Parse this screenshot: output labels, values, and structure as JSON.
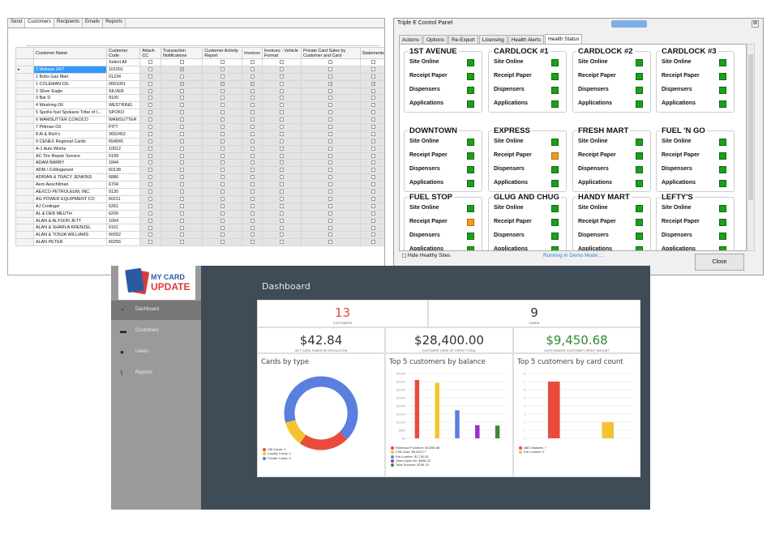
{
  "grid_window": {
    "tabs": [
      "Send",
      "Customers",
      "Recipients",
      "Emails",
      "Reports"
    ],
    "active_tab": "Customers",
    "columns": [
      "Customer Name",
      "Customer Code",
      "Attach CC",
      "Transaction Notifications",
      "Customer Activity Report",
      "Invoices",
      "Invoices - Vehicle Format",
      "Private Card Sales by Customer and Card",
      "Statements"
    ],
    "select_all_label": "Select All",
    "rows": [
      {
        "name": "0 Maltese 24/7",
        "code": "101001",
        "checks": [
          false,
          true,
          false,
          false,
          false,
          false,
          false
        ],
        "selected": true
      },
      {
        "name": "1 Bobs Gas Mart",
        "code": "01234",
        "checks": [
          false,
          false,
          false,
          false,
          false,
          false,
          false
        ]
      },
      {
        "name": "1 COLEMAN OIL",
        "code": "0001001",
        "checks": [
          false,
          true,
          true,
          true,
          false,
          true,
          true
        ]
      },
      {
        "name": "2 Silver Eagle",
        "code": "SILVER",
        "checks": [
          false,
          false,
          false,
          false,
          false,
          false,
          false
        ]
      },
      {
        "name": "3 Bar D",
        "code": "9100",
        "checks": [
          false,
          false,
          false,
          false,
          false,
          false,
          false
        ]
      },
      {
        "name": "4 Westring Oil",
        "code": "WESTRING",
        "checks": [
          false,
          false,
          false,
          false,
          false,
          false,
          false
        ]
      },
      {
        "name": "5 SpoKo fuel Spokane Tribe of I...",
        "code": "SPOKO",
        "checks": [
          false,
          false,
          false,
          false,
          false,
          false,
          false
        ]
      },
      {
        "name": "6 WAMSUTTER CONOCO",
        "code": "WAMSUTTER",
        "checks": [
          false,
          false,
          false,
          false,
          false,
          false,
          false
        ]
      },
      {
        "name": "7 Pittman Oil",
        "code": "PITT",
        "checks": [
          false,
          false,
          false,
          false,
          false,
          false,
          false
        ]
      },
      {
        "name": "8 Al & Rich's",
        "code": "3652452",
        "checks": [
          false,
          false,
          false,
          false,
          false,
          false,
          false
        ]
      },
      {
        "name": "9 CENEX Regional Cards",
        "code": "654565",
        "checks": [
          false,
          false,
          false,
          false,
          false,
          false,
          false
        ]
      },
      {
        "name": "A-1 Auto Works",
        "code": "10012",
        "checks": [
          false,
          false,
          false,
          false,
          false,
          false,
          false
        ]
      },
      {
        "name": "AC Tire Repair Service",
        "code": "6199",
        "checks": [
          false,
          false,
          false,
          false,
          false,
          false,
          false
        ]
      },
      {
        "name": "ADAM BARBY",
        "code": "1844",
        "checks": [
          false,
          false,
          false,
          false,
          false,
          false,
          false
        ]
      },
      {
        "name": "ADM / Collingwood",
        "code": "60138",
        "checks": [
          false,
          false,
          false,
          false,
          false,
          false,
          false
        ]
      },
      {
        "name": "ADRIAN & TRACY JENKINS",
        "code": "6886",
        "checks": [
          false,
          false,
          false,
          false,
          false,
          false,
          false
        ]
      },
      {
        "name": "Aero Aeschliman",
        "code": "6704",
        "checks": [
          false,
          false,
          false,
          false,
          false,
          false,
          false
        ]
      },
      {
        "name": "AEXCO PETROLEUM, INC.",
        "code": "9130",
        "checks": [
          false,
          false,
          false,
          false,
          false,
          false,
          false
        ]
      },
      {
        "name": "AG POWER EQUIPMENT CO",
        "code": "60211",
        "checks": [
          false,
          false,
          false,
          false,
          false,
          false,
          false
        ]
      },
      {
        "name": "AJ Crotinger",
        "code": "6261",
        "checks": [
          false,
          false,
          false,
          false,
          false,
          false,
          false
        ]
      },
      {
        "name": "AL & DEB MEUTH",
        "code": "6209",
        "checks": [
          false,
          false,
          false,
          false,
          false,
          false,
          false
        ]
      },
      {
        "name": "ALAN & ALYSON JETT",
        "code": "1064",
        "checks": [
          false,
          false,
          false,
          false,
          false,
          false,
          false
        ]
      },
      {
        "name": "ALAN & SHARLA KRENZEL",
        "code": "6161",
        "checks": [
          false,
          false,
          false,
          false,
          false,
          false,
          false
        ]
      },
      {
        "name": "ALAN & TONJA WILLIAMS",
        "code": "60052",
        "checks": [
          false,
          false,
          false,
          false,
          false,
          false,
          false
        ]
      },
      {
        "name": "ALAN PETER",
        "code": "60256",
        "checks": [
          false,
          false,
          false,
          false,
          false,
          false,
          false
        ]
      }
    ]
  },
  "control_panel": {
    "title": "Triple E Control Panel",
    "close_x": "⊠",
    "tabs": [
      "Actions",
      "Options",
      "Re-Export",
      "Licensing",
      "Health Alerts",
      "Health Status"
    ],
    "active_tab": "Health Status",
    "row_labels": [
      "Site Online",
      "Receipt Paper",
      "Dispensers",
      "Applications"
    ],
    "sites": [
      {
        "name": "1ST AVENUE",
        "status": [
          "ok",
          "ok",
          "ok",
          "ok"
        ]
      },
      {
        "name": "CARDLOCK #1",
        "status": [
          "ok",
          "ok",
          "ok",
          "ok"
        ]
      },
      {
        "name": "CARDLOCK #2",
        "status": [
          "ok",
          "ok",
          "ok",
          "ok"
        ]
      },
      {
        "name": "CARDLOCK #3",
        "status": [
          "ok",
          "ok",
          "ok",
          "ok"
        ]
      },
      {
        "name": "DOWNTOWN",
        "status": [
          "ok",
          "ok",
          "ok",
          "ok"
        ]
      },
      {
        "name": "EXPRESS",
        "status": [
          "ok",
          "warn",
          "ok",
          "ok"
        ]
      },
      {
        "name": "FRESH MART",
        "status": [
          "ok",
          "ok",
          "ok",
          "ok"
        ]
      },
      {
        "name": "FUEL 'N GO",
        "status": [
          "ok",
          "ok",
          "ok",
          "ok"
        ]
      },
      {
        "name": "FUEL STOP",
        "status": [
          "ok",
          "warn",
          "ok",
          "ok"
        ]
      },
      {
        "name": "GLUG AND CHUG",
        "status": [
          "ok",
          "ok",
          "ok",
          "ok"
        ]
      },
      {
        "name": "HANDY MART",
        "status": [
          "ok",
          "ok",
          "ok",
          "ok"
        ]
      },
      {
        "name": "LEFTY'S",
        "status": [
          "ok",
          "ok",
          "ok",
          "ok"
        ]
      }
    ],
    "status_colors": {
      "ok": "#1aa01a",
      "warn": "#f19a1d"
    },
    "hide_healthy_label": "Hide Healthy Sites",
    "demo_label": "Running in Demo Mode ...",
    "close_label": "Close"
  },
  "dashboard": {
    "logo_line1": "MY CARD",
    "logo_line2": "UPDATE",
    "nav": [
      {
        "label": "Dashboard",
        "icon": "dashboard-icon",
        "active": true
      },
      {
        "label": "Customers",
        "icon": "card-icon"
      },
      {
        "label": "Users",
        "icon": "user-icon"
      },
      {
        "label": "Reports",
        "icon": "line-chart-icon"
      }
    ],
    "title": "Dashboard",
    "kpis": [
      {
        "value": "13",
        "label": "CUSTOMERS",
        "color": "#e14a3a"
      },
      {
        "value": "9",
        "label": "CARDS",
        "color": "#333333"
      },
      {
        "value": "$42.84",
        "label": "GIFT CARD FUNDS IN CIRCULATION",
        "color": "#333333"
      },
      {
        "value": "$28,400.00",
        "label": "CUSTOMER LINES OF CREDIT TOTAL",
        "color": "#333333"
      },
      {
        "value": "$9,450.68",
        "label": "OUTSTANDING CUSTOMER CREDIT AMOUNT",
        "color": "#2e8b2e"
      }
    ]
  },
  "chart_data": [
    {
      "type": "pie",
      "title": "Cards by type",
      "categories": [
        "Gift Cards",
        "Loyalty Cards",
        "Private Cards"
      ],
      "values": [
        2,
        1,
        6
      ],
      "colors": [
        "#e94c3d",
        "#f4c430",
        "#5b7fde"
      ],
      "legend": [
        "Gift Cards: 2",
        "Loyalty Cards: 1",
        "Private Cards: 6"
      ],
      "legend_position": "bottom-left"
    },
    {
      "type": "bar",
      "title": "Top 5 customers by balance",
      "categories": [
        "Robinson Furniture",
        "CSK Auto",
        "Erb Lumber",
        "Giant Open Air",
        "Total Sources"
      ],
      "values": [
        3598.98,
        3420.77,
        1730.51,
        808.32,
        784.1
      ],
      "colors": [
        "#e94c3d",
        "#f4c430",
        "#5b7fde",
        "#9b30c8",
        "#3b8c2e"
      ],
      "legend": [
        "Robinson Furniture: $3,598.98",
        "CSK Auto: $3,420.77",
        "Erb Lumber: $1,730.51",
        "Giant Open Air: $808.32",
        "Total Sources: $784.10"
      ],
      "yticks": [
        "$0",
        "$500",
        "$1,000",
        "$1,500",
        "$2,000",
        "$2,500",
        "$3,000",
        "$3,500",
        "$4,000"
      ],
      "ylim": [
        0,
        4000
      ],
      "grid": true,
      "legend_position": "bottom-left"
    },
    {
      "type": "bar",
      "title": "Top 5 customers by card count",
      "categories": [
        "ABC Markets",
        "Erb Lumber"
      ],
      "values": [
        7,
        2
      ],
      "colors": [
        "#e94c3d",
        "#f4c430"
      ],
      "legend": [
        "ABC Markets: 7",
        "Erb Lumber: 2"
      ],
      "yticks": [
        "0",
        "1",
        "2",
        "3",
        "4",
        "5",
        "6",
        "7",
        "8"
      ],
      "ylim": [
        0,
        8
      ],
      "grid": true,
      "legend_position": "bottom-left"
    }
  ]
}
